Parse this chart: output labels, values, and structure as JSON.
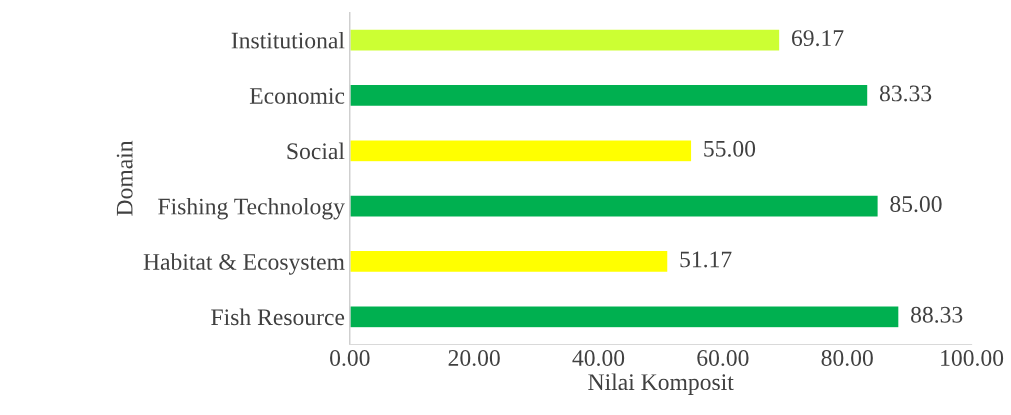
{
  "chart_data": {
    "type": "bar",
    "orientation": "horizontal",
    "xlabel": "Nilai Komposit",
    "ylabel": "Domain",
    "categories": [
      "Institutional",
      "Economic",
      "Social",
      "Fishing Technology",
      "Habitat & Ecosystem",
      "Fish Resource"
    ],
    "values": [
      69.17,
      83.33,
      55.0,
      85.0,
      51.17,
      88.33
    ],
    "colors": [
      "#ccff33",
      "#00b050",
      "#ffff00",
      "#00b050",
      "#ffff00",
      "#00b050"
    ],
    "value_labels": [
      "69.17",
      "83.33",
      "55.00",
      "85.00",
      "51.17",
      "88.33"
    ],
    "xlim": [
      0,
      100
    ],
    "xticks": [
      {
        "value": 0,
        "label": "0.00"
      },
      {
        "value": 20,
        "label": "20.00"
      },
      {
        "value": 40,
        "label": "40.00"
      },
      {
        "value": 60,
        "label": "60.00"
      },
      {
        "value": 80,
        "label": "80.00"
      },
      {
        "value": 100,
        "label": "100.00"
      }
    ],
    "grid": false,
    "legend": false
  }
}
